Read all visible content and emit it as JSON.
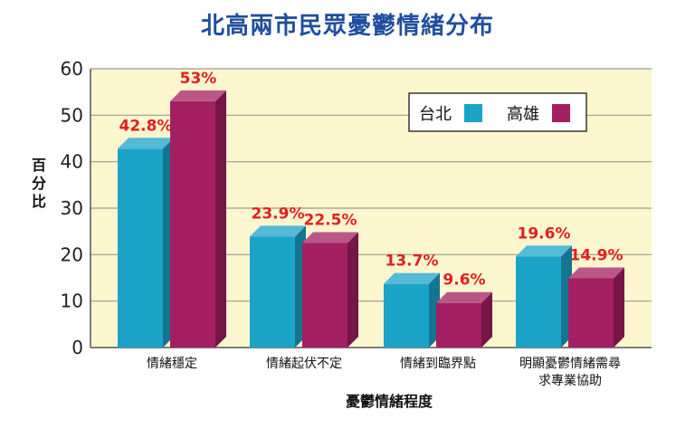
{
  "chart_data": {
    "type": "bar",
    "title": "北高兩市民眾憂鬱情緒分布",
    "xlabel": "憂鬱情緒程度",
    "ylabel": "百分比",
    "ylim": [
      0,
      60
    ],
    "yticks": [
      0,
      10,
      20,
      30,
      40,
      50,
      60
    ],
    "grid": true,
    "legend_position": "top-right",
    "categories": [
      [
        "情緒穩定"
      ],
      [
        "情緒起伏不定"
      ],
      [
        "情緒到臨界點"
      ],
      [
        "明顯憂鬱情緒需尋",
        "求專業協助"
      ]
    ],
    "series": [
      {
        "name": "台北",
        "color": "#1ba3c8",
        "values": [
          42.8,
          23.9,
          13.7,
          19.6
        ],
        "labels": [
          "42.8%",
          "23.9%",
          "13.7%",
          "19.6%"
        ]
      },
      {
        "name": "高雄",
        "color": "#a31f62",
        "values": [
          53,
          22.5,
          9.6,
          14.9
        ],
        "labels": [
          "53%",
          "22.5%",
          "9.6%",
          "14.9%"
        ]
      }
    ],
    "plot_background": "#fcf6cf",
    "label_color": "#e02020"
  }
}
